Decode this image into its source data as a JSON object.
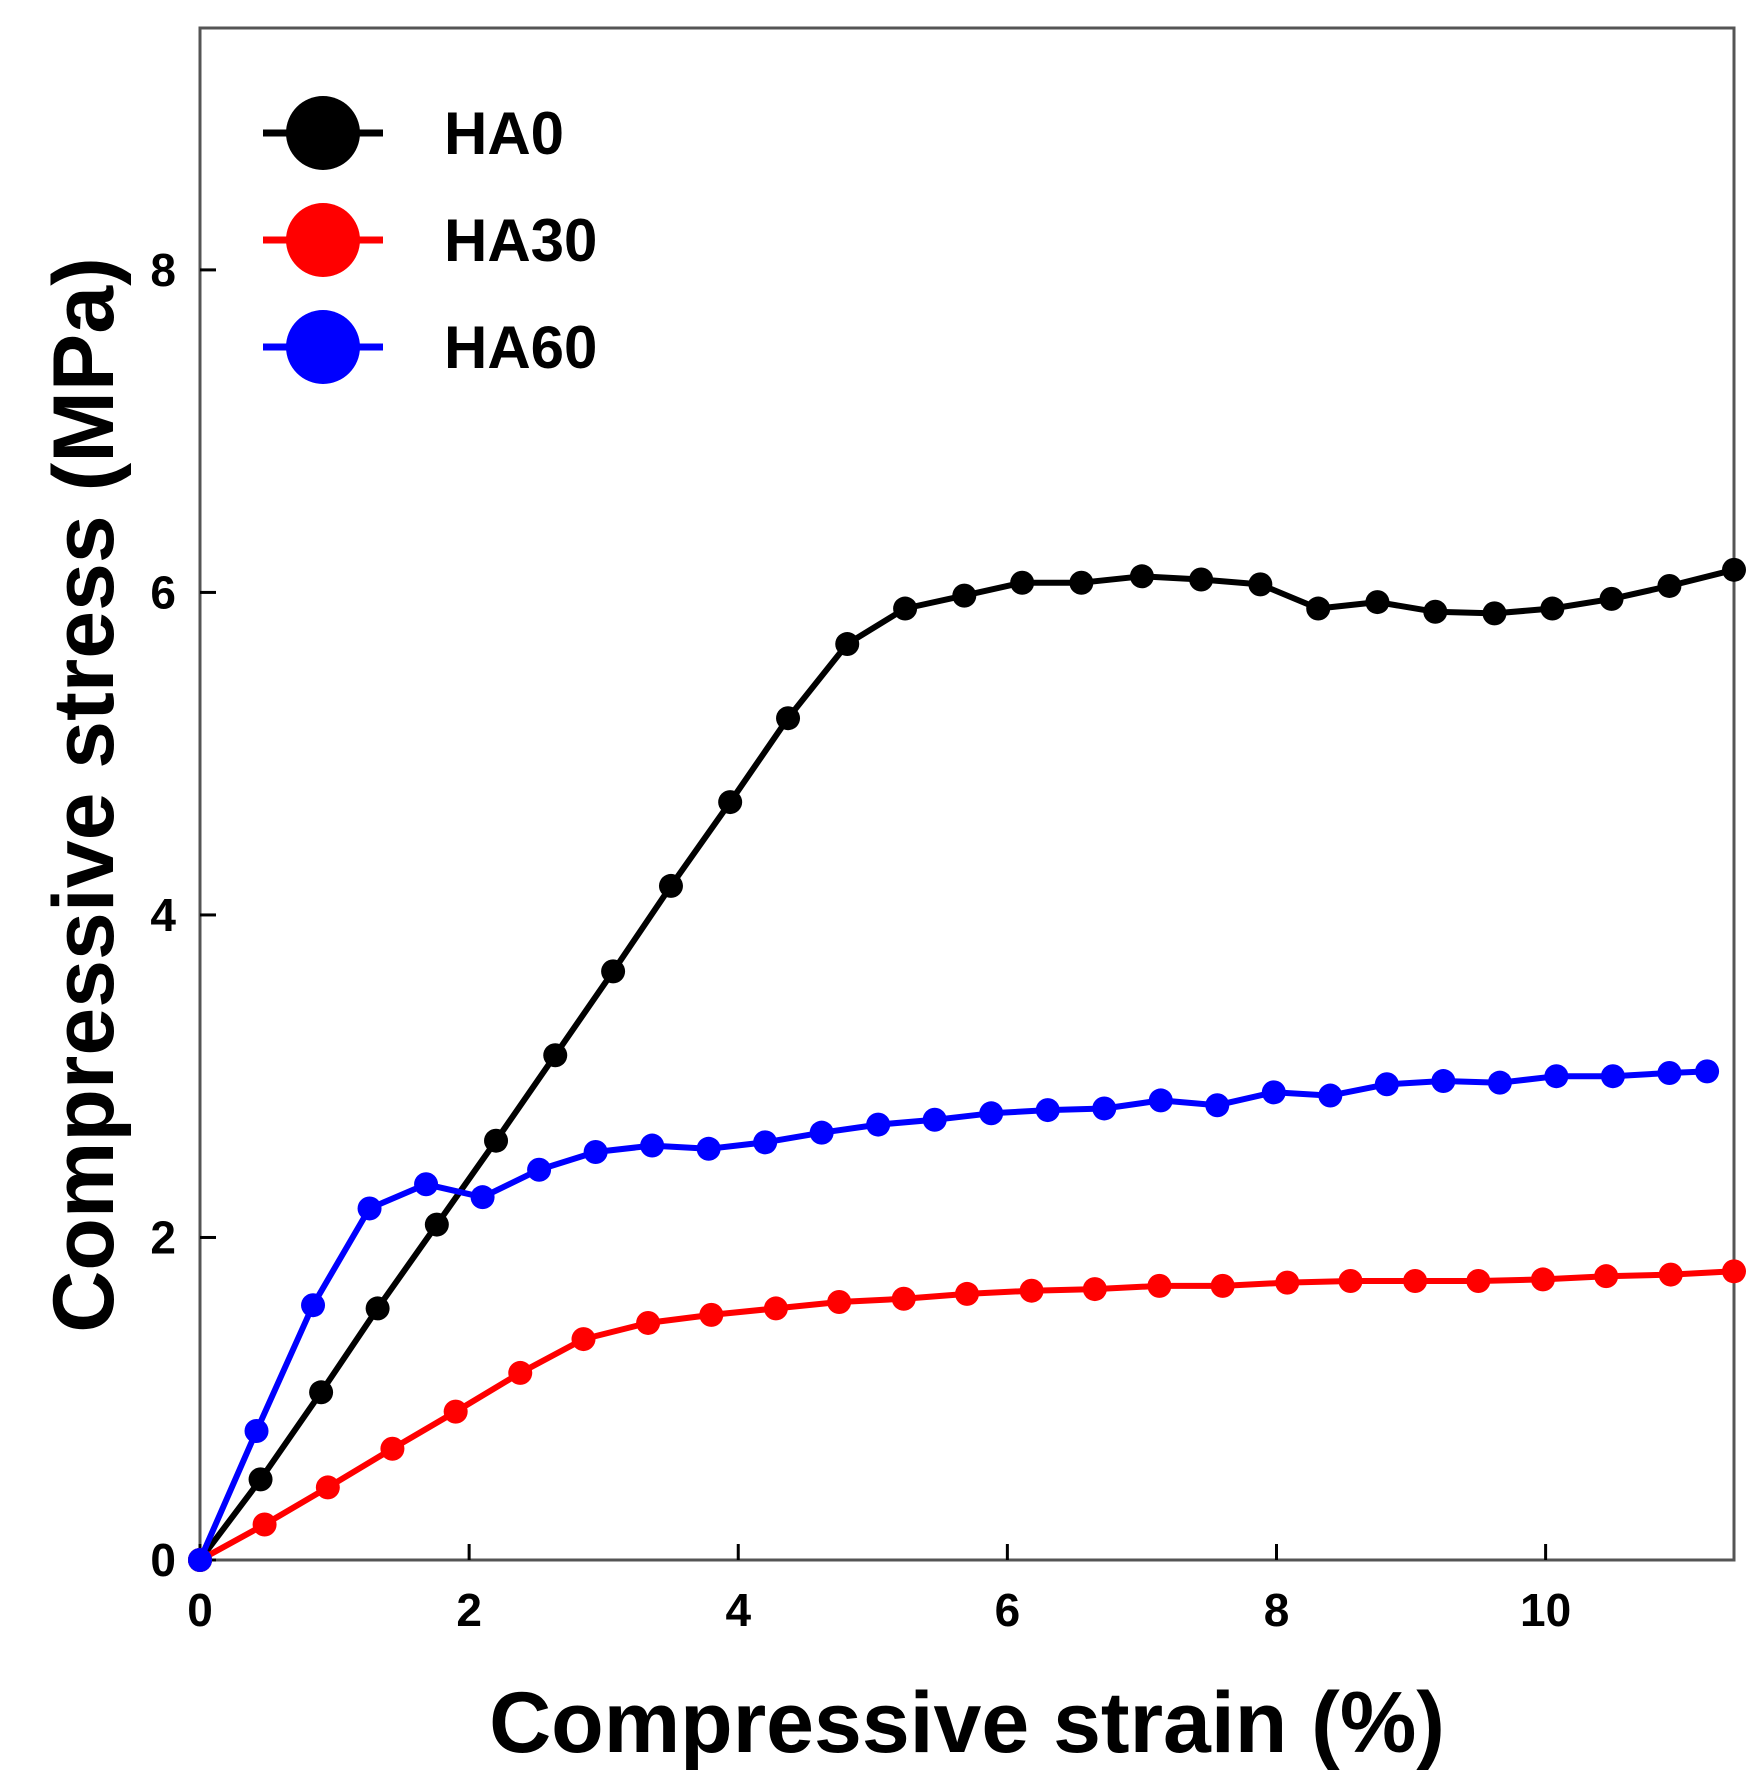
{
  "chart_data": {
    "type": "line",
    "title": "",
    "xlabel": "Compressive strain (%)",
    "ylabel": "Compressive stress (MPa)",
    "xlim": [
      0,
      11.4
    ],
    "ylim": [
      0,
      9.5
    ],
    "xticks": [
      0,
      2,
      4,
      6,
      8,
      10
    ],
    "yticks": [
      0,
      2,
      4,
      6,
      8
    ],
    "xtick_labels": [
      "0",
      "2",
      "4",
      "6",
      "8",
      "10"
    ],
    "ytick_labels": [
      "0",
      "2",
      "4",
      "6",
      "8"
    ],
    "grid": false,
    "legend_position": "top-left",
    "series": [
      {
        "name": "HA0",
        "color": "#000000",
        "x": [
          0,
          0.45,
          0.9,
          1.32,
          1.76,
          2.2,
          2.64,
          3.07,
          3.5,
          3.94,
          4.37,
          4.81,
          5.24,
          5.68,
          6.11,
          6.55,
          7.0,
          7.44,
          7.88,
          8.31,
          8.75,
          9.18,
          9.62,
          10.05,
          10.49,
          10.92,
          11.4
        ],
        "y": [
          0,
          0.5,
          1.04,
          1.56,
          2.08,
          2.6,
          3.13,
          3.65,
          4.18,
          4.7,
          5.22,
          5.68,
          5.9,
          5.98,
          6.06,
          6.06,
          6.1,
          6.08,
          6.05,
          5.9,
          5.94,
          5.88,
          5.87,
          5.9,
          5.96,
          6.04,
          6.14
        ]
      },
      {
        "name": "HA30",
        "color": "#ff0000",
        "x": [
          0,
          0.48,
          0.95,
          1.43,
          1.9,
          2.38,
          2.85,
          3.33,
          3.8,
          4.28,
          4.75,
          5.23,
          5.7,
          6.18,
          6.65,
          7.13,
          7.6,
          8.08,
          8.55,
          9.03,
          9.5,
          9.98,
          10.45,
          10.93,
          11.4
        ],
        "y": [
          0,
          0.22,
          0.45,
          0.69,
          0.92,
          1.16,
          1.37,
          1.47,
          1.52,
          1.56,
          1.6,
          1.62,
          1.65,
          1.67,
          1.68,
          1.7,
          1.7,
          1.72,
          1.73,
          1.73,
          1.73,
          1.74,
          1.76,
          1.77,
          1.79
        ]
      },
      {
        "name": "HA60",
        "color": "#0000ff",
        "x": [
          0,
          0.42,
          0.84,
          1.26,
          1.68,
          2.1,
          2.52,
          2.94,
          3.36,
          3.78,
          4.2,
          4.62,
          5.04,
          5.46,
          5.88,
          6.3,
          6.72,
          7.14,
          7.56,
          7.98,
          8.4,
          8.82,
          9.24,
          9.66,
          10.08,
          10.5,
          10.92,
          11.2
        ],
        "y": [
          0,
          0.8,
          1.58,
          2.18,
          2.33,
          2.25,
          2.42,
          2.53,
          2.57,
          2.55,
          2.59,
          2.65,
          2.7,
          2.73,
          2.77,
          2.79,
          2.8,
          2.85,
          2.82,
          2.9,
          2.88,
          2.95,
          2.97,
          2.96,
          3.0,
          3.0,
          3.02,
          3.03
        ]
      }
    ]
  }
}
